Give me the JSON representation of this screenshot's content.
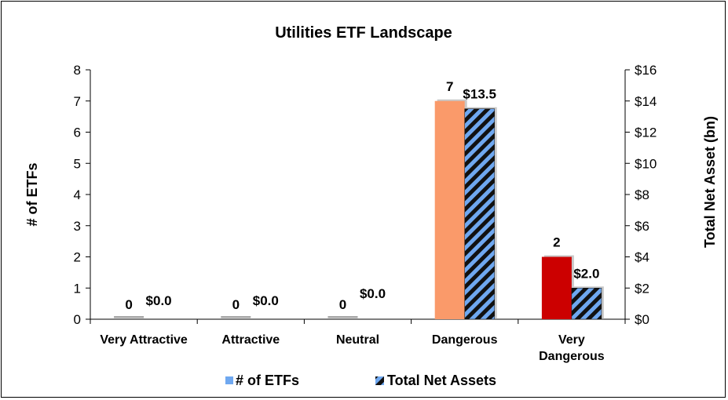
{
  "chart_data": {
    "type": "bar",
    "title": "Utilities ETF Landscape",
    "categories": [
      [
        "Very Attractive"
      ],
      [
        "Attractive"
      ],
      [
        "Neutral"
      ],
      [
        "Dangerous"
      ],
      [
        "Very",
        "Dangerous"
      ]
    ],
    "y_left": {
      "label": "# of ETFs",
      "range": [
        0,
        8
      ],
      "ticks": [
        "0",
        "1",
        "2",
        "3",
        "4",
        "5",
        "6",
        "7",
        "8"
      ]
    },
    "y_right": {
      "label": "Total Net Asset (bn)",
      "range": [
        0,
        16
      ],
      "ticks": [
        "$0",
        "$2",
        "$4",
        "$6",
        "$8",
        "$10",
        "$12",
        "$14",
        "$16"
      ]
    },
    "series": [
      {
        "name": "# of ETFs",
        "axis": "left",
        "values": [
          0,
          0,
          0,
          7,
          2
        ],
        "labels": [
          "0",
          "0",
          "0",
          "7",
          "2"
        ],
        "bar_colors": [
          "#a6a6a6",
          "#a6a6a6",
          "#a6a6a6",
          "#fa9a6a",
          "#cc0000"
        ]
      },
      {
        "name": "Total Net Assets",
        "axis": "right",
        "values": [
          0.0,
          0.0,
          0.0,
          13.5,
          2.0
        ],
        "labels": [
          "$0.0",
          "$0.0",
          "$0.0",
          "$13.5",
          "$2.0"
        ],
        "hatch_colors": [
          "#6fa8f0",
          "#111111"
        ]
      }
    ],
    "legend": {
      "position": "bottom",
      "items": [
        {
          "label": "# of ETFs",
          "swatch_color": "#6fa8f0"
        },
        {
          "label": "Total Net Assets",
          "swatch_color": "#6fa8f0"
        }
      ]
    },
    "grid": false
  }
}
